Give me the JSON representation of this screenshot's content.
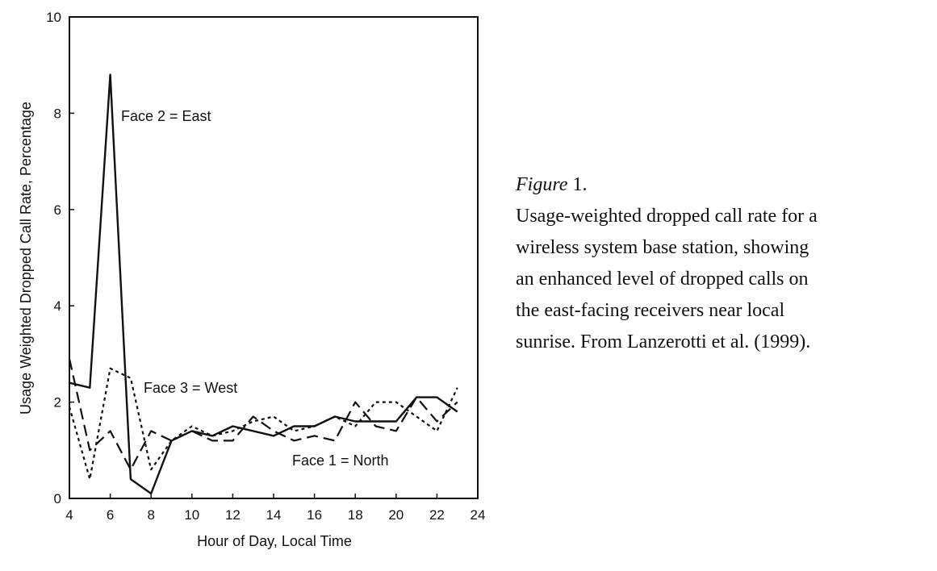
{
  "chart_data": {
    "type": "line",
    "title": "",
    "xlabel": "Hour of Day, Local Time",
    "ylabel": "Usage Weighted Dropped Call Rate, Percentage",
    "xlim": [
      4,
      24
    ],
    "ylim": [
      0,
      10
    ],
    "x_ticks": [
      "4",
      "6",
      "8",
      "10",
      "12",
      "14",
      "16",
      "18",
      "20",
      "22",
      "24"
    ],
    "y_ticks": [
      "0",
      "2",
      "4",
      "6",
      "8",
      "10"
    ],
    "grid": false,
    "legend": "none (labels placed next to lines)",
    "series": [
      {
        "name": "Face 2 = East",
        "style": "solid",
        "x": [
          4,
          5,
          6,
          7,
          8,
          9,
          10,
          11,
          12,
          13,
          14,
          15,
          16,
          17,
          18,
          19,
          20,
          21,
          22,
          23
        ],
        "values": [
          2.4,
          2.3,
          8.8,
          0.4,
          0.1,
          1.2,
          1.4,
          1.3,
          1.5,
          1.4,
          1.3,
          1.5,
          1.5,
          1.7,
          1.6,
          1.6,
          1.6,
          2.1,
          2.1,
          1.8
        ]
      },
      {
        "name": "Face 3 = West",
        "style": "dotted",
        "x": [
          4,
          5,
          6,
          7,
          8,
          9,
          10,
          11,
          12,
          13,
          14,
          15,
          16,
          17,
          18,
          19,
          20,
          21,
          22,
          23
        ],
        "values": [
          1.9,
          0.4,
          2.7,
          2.5,
          0.6,
          1.2,
          1.5,
          1.3,
          1.4,
          1.6,
          1.7,
          1.4,
          1.5,
          1.7,
          1.5,
          2.0,
          2.0,
          1.7,
          1.4,
          2.3
        ]
      },
      {
        "name": "Face 1 = North",
        "style": "dashed",
        "x": [
          4,
          5,
          6,
          7,
          8,
          9,
          10,
          11,
          12,
          13,
          14,
          15,
          16,
          17,
          18,
          19,
          20,
          21,
          22,
          23
        ],
        "values": [
          2.9,
          1.0,
          1.4,
          0.6,
          1.4,
          1.2,
          1.4,
          1.2,
          1.2,
          1.7,
          1.4,
          1.2,
          1.3,
          1.2,
          2.0,
          1.5,
          1.4,
          2.1,
          1.6,
          2.0
        ]
      }
    ]
  },
  "caption": {
    "figure_label": "Figure",
    "figure_number": " 1.",
    "lines": [
      "Usage-weighted dropped call rate for a",
      "wireless system base station, showing",
      "an enhanced level of dropped calls on",
      "the east-facing receivers near local",
      "sunrise.  From Lanzerotti et al. (1999)."
    ]
  }
}
